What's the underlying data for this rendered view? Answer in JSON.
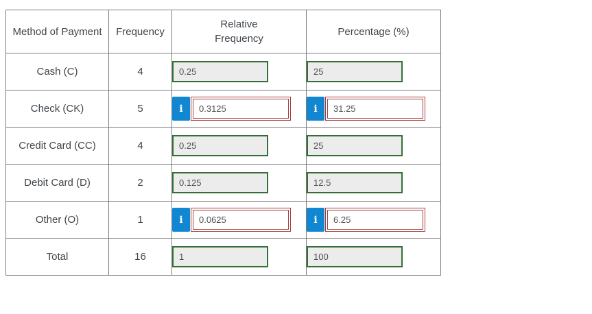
{
  "page": {
    "background": "#ffffff"
  },
  "colors": {
    "table_border": "#7b7b7b",
    "correct_border": "#356e35",
    "correct_bg": "#ececec",
    "feedback_border": "#a33e3e",
    "info_blue": "#1287d1",
    "heading_text": "#3f454b",
    "value_text": "#4f4f4f"
  },
  "icons": {
    "info": "i"
  },
  "table": {
    "headers": [
      "Method of Payment",
      "Frequency",
      "Relative\nFrequency",
      "Percentage (%)"
    ],
    "rows": [
      {
        "label": "Cash (C)",
        "frequency": "4",
        "relative_frequency": {
          "value": "0.25",
          "state": "graded"
        },
        "percentage": {
          "value": "25",
          "state": "graded"
        }
      },
      {
        "label": "Check (CK)",
        "frequency": "5",
        "relative_frequency": {
          "value": "0.3125",
          "state": "feedback"
        },
        "percentage": {
          "value": "31.25",
          "state": "feedback"
        }
      },
      {
        "label": "Credit Card (CC)",
        "frequency": "4",
        "relative_frequency": {
          "value": "0.25",
          "state": "graded"
        },
        "percentage": {
          "value": "25",
          "state": "graded"
        }
      },
      {
        "label": "Debit Card (D)",
        "frequency": "2",
        "relative_frequency": {
          "value": "0.125",
          "state": "graded"
        },
        "percentage": {
          "value": "12.5",
          "state": "graded"
        }
      },
      {
        "label": "Other (O)",
        "frequency": "1",
        "relative_frequency": {
          "value": "0.0625",
          "state": "feedback"
        },
        "percentage": {
          "value": "6.25",
          "state": "feedback"
        }
      },
      {
        "label": "Total",
        "frequency": "16",
        "relative_frequency": {
          "value": "1",
          "state": "graded"
        },
        "percentage": {
          "value": "100",
          "state": "graded"
        }
      }
    ]
  }
}
